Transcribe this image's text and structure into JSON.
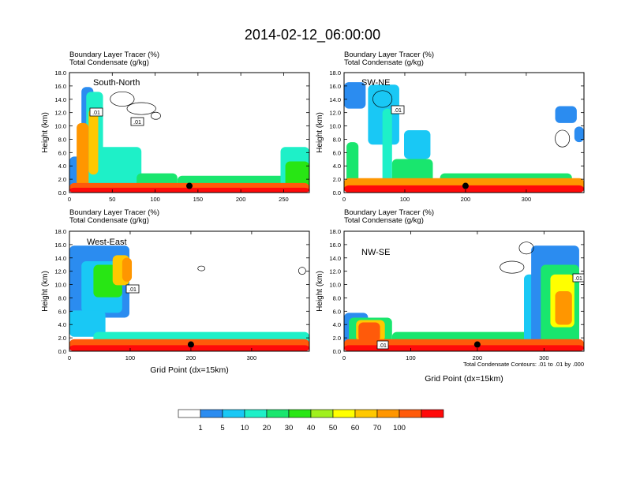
{
  "figure": {
    "title": "2014-02-12_06:00:00",
    "contour_note": "Total Condensate Contours: .01 to .01 by .000",
    "grid_xlabel": "Grid Point (dx=15km)"
  },
  "legend": {
    "levels": [
      "1",
      "5",
      "10",
      "20",
      "30",
      "40",
      "50",
      "60",
      "70",
      "100"
    ],
    "colors": [
      "#ffffff",
      "#2b8cf0",
      "#19c8f5",
      "#1ef0c8",
      "#19e66e",
      "#28e614",
      "#a0f01e",
      "#ffff00",
      "#ffc800",
      "#ff9600",
      "#ff5a0a",
      "#ff0a0a"
    ]
  },
  "chart_data": [
    {
      "type": "heatmap",
      "title": "South-North",
      "header_line1": "Boundary Layer Tracer   (%)",
      "header_line2": "Total Condensate   (g/kg)",
      "ylabel": "Height (km)",
      "xlabel": "",
      "xlim": [
        0,
        280
      ],
      "ylim": [
        0,
        18
      ],
      "xticks": [
        "0",
        "50",
        "100",
        "150",
        "200",
        "250"
      ],
      "xtick_values": [
        0,
        50,
        100,
        150,
        200,
        250
      ],
      "yticks": [
        "0.0",
        "2.0",
        "4.0",
        "6.0",
        "8.0",
        "10.0",
        "12.0",
        "14.0",
        "16.0",
        "18.0"
      ],
      "contour_labels": [
        ".01",
        ".01"
      ],
      "marker_x": 140,
      "marker_y": 1.0
    },
    {
      "type": "heatmap",
      "title": "SW-NE",
      "header_line1": "Boundary Layer Tracer   (%)",
      "header_line2": "Total Condensate   (g/kg)",
      "ylabel": "Height (km)",
      "xlabel": "",
      "xlim": [
        0,
        395
      ],
      "ylim": [
        0,
        18
      ],
      "xticks": [
        "0",
        "100",
        "200",
        "300"
      ],
      "xtick_values": [
        0,
        100,
        200,
        300
      ],
      "yticks": [
        "0.0",
        "2.0",
        "4.0",
        "6.0",
        "8.0",
        "10.0",
        "12.0",
        "14.0",
        "16.0",
        "18.0"
      ],
      "contour_labels": [
        ".01"
      ],
      "marker_x": 200,
      "marker_y": 1.0
    },
    {
      "type": "heatmap",
      "title": "West-East",
      "header_line1": "Boundary Layer Tracer   (%)",
      "header_line2": "Total Condensate   (g/kg)",
      "ylabel": "Height (km)",
      "xlabel": "Grid Point (dx=15km)",
      "xlim": [
        0,
        395
      ],
      "ylim": [
        0,
        18
      ],
      "xticks": [
        "0",
        "100",
        "200",
        "300"
      ],
      "xtick_values": [
        0,
        100,
        200,
        300
      ],
      "yticks": [
        "0.0",
        "2.0",
        "4.0",
        "6.0",
        "8.0",
        "10.0",
        "12.0",
        "14.0",
        "16.0",
        "18.0"
      ],
      "contour_labels": [
        ".01"
      ],
      "marker_x": 200,
      "marker_y": 1.0
    },
    {
      "type": "heatmap",
      "title": "NW-SE",
      "header_line1": "Boundary Layer Tracer   (%)",
      "header_line2": "Total Condensate   (g/kg)",
      "ylabel": "Height (km)",
      "xlabel": "",
      "xlim": [
        0,
        360
      ],
      "ylim": [
        0,
        18
      ],
      "xticks": [
        "0",
        "100",
        "200",
        "300"
      ],
      "xtick_values": [
        0,
        100,
        200,
        300
      ],
      "yticks": [
        "0.0",
        "2.0",
        "4.0",
        "6.0",
        "8.0",
        "10.0",
        "12.0",
        "14.0",
        "16.0",
        "18.0"
      ],
      "contour_labels": [
        ".01",
        ".01"
      ],
      "marker_x": 200,
      "marker_y": 1.0
    }
  ]
}
